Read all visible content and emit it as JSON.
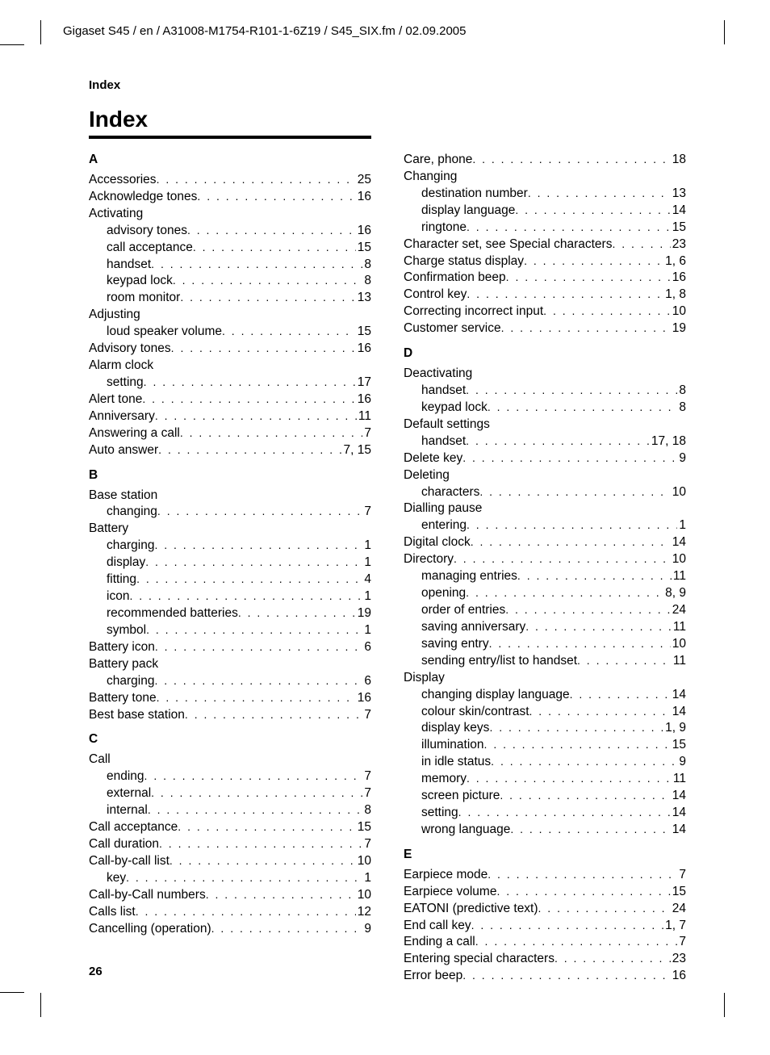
{
  "header_path": "Gigaset S45 / en / A31008-M1754-R101-1-6Z19 / S45_SIX.fm / 02.09.2005",
  "index_label": "Index",
  "index_title": "Index",
  "page_number": "26",
  "left_sections": [
    {
      "letter": "A",
      "entries": [
        {
          "t": "Accessories",
          "p": "25",
          "sub": false
        },
        {
          "t": "Acknowledge tones",
          "p": "16",
          "sub": false
        },
        {
          "t": "Activating",
          "p": "",
          "sub": false
        },
        {
          "t": "advisory tones",
          "p": "16",
          "sub": true
        },
        {
          "t": "call acceptance",
          "p": "15",
          "sub": true
        },
        {
          "t": "handset",
          "p": "8",
          "sub": true
        },
        {
          "t": "keypad lock",
          "p": "8",
          "sub": true
        },
        {
          "t": "room monitor",
          "p": "13",
          "sub": true
        },
        {
          "t": "Adjusting",
          "p": "",
          "sub": false
        },
        {
          "t": "loud speaker volume",
          "p": "15",
          "sub": true
        },
        {
          "t": "Advisory tones",
          "p": "16",
          "sub": false
        },
        {
          "t": "Alarm clock",
          "p": "",
          "sub": false
        },
        {
          "t": "setting",
          "p": "17",
          "sub": true
        },
        {
          "t": "Alert tone",
          "p": "16",
          "sub": false
        },
        {
          "t": "Anniversary",
          "p": "11",
          "sub": false
        },
        {
          "t": "Answering a call",
          "p": "7",
          "sub": false
        },
        {
          "t": "Auto answer",
          "p": "7, 15",
          "sub": false
        }
      ]
    },
    {
      "letter": "B",
      "entries": [
        {
          "t": "Base station",
          "p": "",
          "sub": false
        },
        {
          "t": "changing",
          "p": "7",
          "sub": true
        },
        {
          "t": "Battery",
          "p": "",
          "sub": false
        },
        {
          "t": "charging",
          "p": "1",
          "sub": true
        },
        {
          "t": "display",
          "p": "1",
          "sub": true
        },
        {
          "t": "fitting",
          "p": "4",
          "sub": true
        },
        {
          "t": "icon",
          "p": "1",
          "sub": true
        },
        {
          "t": "recommended batteries",
          "p": "19",
          "sub": true
        },
        {
          "t": "symbol",
          "p": "1",
          "sub": true
        },
        {
          "t": "Battery icon",
          "p": "6",
          "sub": false
        },
        {
          "t": "Battery pack",
          "p": "",
          "sub": false
        },
        {
          "t": "charging",
          "p": "6",
          "sub": true
        },
        {
          "t": "Battery tone",
          "p": "16",
          "sub": false
        },
        {
          "t": "Best base station",
          "p": "7",
          "sub": false
        }
      ]
    },
    {
      "letter": "C",
      "entries": [
        {
          "t": "Call",
          "p": "",
          "sub": false
        },
        {
          "t": "ending",
          "p": "7",
          "sub": true
        },
        {
          "t": "external",
          "p": "7",
          "sub": true
        },
        {
          "t": "internal",
          "p": "8",
          "sub": true
        },
        {
          "t": "Call acceptance",
          "p": "15",
          "sub": false
        },
        {
          "t": "Call duration",
          "p": "7",
          "sub": false
        },
        {
          "t": "Call-by-call list",
          "p": "10",
          "sub": false
        },
        {
          "t": "key",
          "p": "1",
          "sub": true
        },
        {
          "t": "Call-by-Call numbers",
          "p": "10",
          "sub": false
        },
        {
          "t": "Calls list",
          "p": "12",
          "sub": false
        },
        {
          "t": "Cancelling (operation)",
          "p": "9",
          "sub": false
        }
      ]
    }
  ],
  "right_sections": [
    {
      "letter": "",
      "entries": [
        {
          "t": "Care, phone",
          "p": "18",
          "sub": false
        },
        {
          "t": "Changing",
          "p": "",
          "sub": false
        },
        {
          "t": "destination number",
          "p": "13",
          "sub": true
        },
        {
          "t": "display language",
          "p": "14",
          "sub": true
        },
        {
          "t": "ringtone",
          "p": "15",
          "sub": true
        },
        {
          "t": "Character set, see Special characters",
          "p": "23",
          "sub": false
        },
        {
          "t": "Charge status display",
          "p": "1, 6",
          "sub": false
        },
        {
          "t": "Confirmation beep",
          "p": "16",
          "sub": false
        },
        {
          "t": "Control key",
          "p": "1, 8",
          "sub": false
        },
        {
          "t": "Correcting incorrect input",
          "p": "10",
          "sub": false
        },
        {
          "t": "Customer service",
          "p": "19",
          "sub": false
        }
      ]
    },
    {
      "letter": "D",
      "entries": [
        {
          "t": "Deactivating",
          "p": "",
          "sub": false
        },
        {
          "t": "handset",
          "p": "8",
          "sub": true
        },
        {
          "t": "keypad lock",
          "p": "8",
          "sub": true
        },
        {
          "t": "Default settings",
          "p": "",
          "sub": false
        },
        {
          "t": "handset",
          "p": "17, 18",
          "sub": true
        },
        {
          "t": "Delete key",
          "p": "9",
          "sub": false
        },
        {
          "t": "Deleting",
          "p": "",
          "sub": false
        },
        {
          "t": "characters",
          "p": "10",
          "sub": true
        },
        {
          "t": "Dialling pause",
          "p": "",
          "sub": false
        },
        {
          "t": "entering",
          "p": "1",
          "sub": true
        },
        {
          "t": "Digital clock",
          "p": "14",
          "sub": false
        },
        {
          "t": "Directory",
          "p": "10",
          "sub": false
        },
        {
          "t": "managing entries",
          "p": "11",
          "sub": true
        },
        {
          "t": "opening",
          "p": "8, 9",
          "sub": true
        },
        {
          "t": "order of entries",
          "p": "24",
          "sub": true
        },
        {
          "t": "saving anniversary",
          "p": "11",
          "sub": true
        },
        {
          "t": "saving entry",
          "p": "10",
          "sub": true
        },
        {
          "t": "sending entry/list to handset",
          "p": "11",
          "sub": true
        },
        {
          "t": "Display",
          "p": "",
          "sub": false
        },
        {
          "t": "changing display language",
          "p": "14",
          "sub": true
        },
        {
          "t": "colour skin/contrast",
          "p": "14",
          "sub": true
        },
        {
          "t": "display keys",
          "p": "1, 9",
          "sub": true
        },
        {
          "t": "illumination",
          "p": "15",
          "sub": true
        },
        {
          "t": "in idle status",
          "p": "9",
          "sub": true
        },
        {
          "t": "memory",
          "p": "11",
          "sub": true
        },
        {
          "t": "screen picture",
          "p": "14",
          "sub": true
        },
        {
          "t": "setting",
          "p": "14",
          "sub": true
        },
        {
          "t": "wrong language",
          "p": "14",
          "sub": true
        }
      ]
    },
    {
      "letter": "E",
      "entries": [
        {
          "t": "Earpiece mode",
          "p": "7",
          "sub": false
        },
        {
          "t": "Earpiece volume",
          "p": "15",
          "sub": false
        },
        {
          "t": "EATONI (predictive text)",
          "p": "24",
          "sub": false
        },
        {
          "t": "End call key",
          "p": "1, 7",
          "sub": false
        },
        {
          "t": "Ending a call",
          "p": "7",
          "sub": false
        },
        {
          "t": "Entering special characters",
          "p": "23",
          "sub": false
        },
        {
          "t": "Error beep",
          "p": "16",
          "sub": false
        }
      ]
    }
  ]
}
